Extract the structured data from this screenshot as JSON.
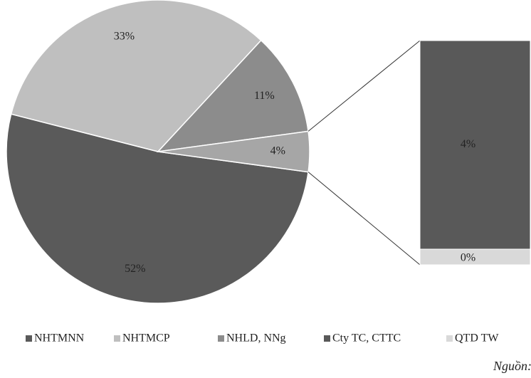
{
  "chart_data": {
    "type": "pie-of-bar",
    "categories": [
      "NHTMNN",
      "NHTMCP",
      "NHLD, NNg",
      "Cty TC, CTTC",
      "QTD TW"
    ],
    "values": [
      52,
      33,
      11,
      4,
      0.3
    ],
    "value_labels": [
      "52%",
      "33%",
      "11%",
      "4%",
      "0%"
    ],
    "colors": [
      "#5a5a5a",
      "#bfbfbf",
      "#8c8c8c",
      "#595959",
      "#d9d9d9"
    ],
    "secondary_count": 2,
    "other_color": "#a6a6a6",
    "other_label": "4%",
    "legend": "bottom",
    "source": "Nguồn: NHNN"
  }
}
